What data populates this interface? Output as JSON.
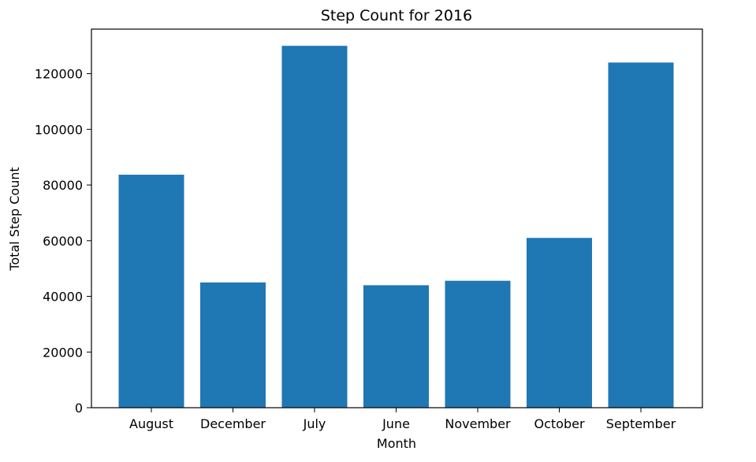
{
  "chart_data": {
    "type": "bar",
    "title": "Step Count for 2016",
    "xlabel": "Month",
    "ylabel": "Total Step Count",
    "categories": [
      "August",
      "December",
      "July",
      "June",
      "November",
      "October",
      "September"
    ],
    "values": [
      83700,
      45000,
      130000,
      44000,
      45600,
      61000,
      124000
    ],
    "ylim": [
      0,
      136000
    ],
    "yticks": [
      0,
      20000,
      40000,
      60000,
      80000,
      100000,
      120000
    ],
    "bar_color": "#1f77b4",
    "grid": false
  }
}
